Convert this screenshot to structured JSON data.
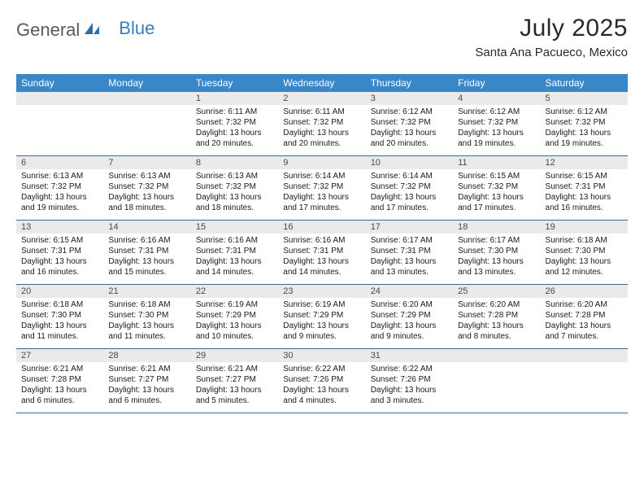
{
  "logo": {
    "text1": "General",
    "text2": "Blue"
  },
  "title": "July 2025",
  "location": "Santa Ana Pacueco, Mexico",
  "colors": {
    "header_bg": "#3a87c7",
    "header_fg": "#ffffff",
    "daynum_bg": "#e8eaec",
    "daynum_fg": "#4a4a4a",
    "body_fg": "#1a1a1a",
    "rule": "#3a6a95",
    "logo_gray": "#5a5a5a",
    "logo_blue": "#3a7db8"
  },
  "weekdays": [
    "Sunday",
    "Monday",
    "Tuesday",
    "Wednesday",
    "Thursday",
    "Friday",
    "Saturday"
  ],
  "leading_blanks": 2,
  "days": [
    {
      "n": 1,
      "sunrise": "6:11 AM",
      "sunset": "7:32 PM",
      "daylight": "13 hours and 20 minutes."
    },
    {
      "n": 2,
      "sunrise": "6:11 AM",
      "sunset": "7:32 PM",
      "daylight": "13 hours and 20 minutes."
    },
    {
      "n": 3,
      "sunrise": "6:12 AM",
      "sunset": "7:32 PM",
      "daylight": "13 hours and 20 minutes."
    },
    {
      "n": 4,
      "sunrise": "6:12 AM",
      "sunset": "7:32 PM",
      "daylight": "13 hours and 19 minutes."
    },
    {
      "n": 5,
      "sunrise": "6:12 AM",
      "sunset": "7:32 PM",
      "daylight": "13 hours and 19 minutes."
    },
    {
      "n": 6,
      "sunrise": "6:13 AM",
      "sunset": "7:32 PM",
      "daylight": "13 hours and 19 minutes."
    },
    {
      "n": 7,
      "sunrise": "6:13 AM",
      "sunset": "7:32 PM",
      "daylight": "13 hours and 18 minutes."
    },
    {
      "n": 8,
      "sunrise": "6:13 AM",
      "sunset": "7:32 PM",
      "daylight": "13 hours and 18 minutes."
    },
    {
      "n": 9,
      "sunrise": "6:14 AM",
      "sunset": "7:32 PM",
      "daylight": "13 hours and 17 minutes."
    },
    {
      "n": 10,
      "sunrise": "6:14 AM",
      "sunset": "7:32 PM",
      "daylight": "13 hours and 17 minutes."
    },
    {
      "n": 11,
      "sunrise": "6:15 AM",
      "sunset": "7:32 PM",
      "daylight": "13 hours and 17 minutes."
    },
    {
      "n": 12,
      "sunrise": "6:15 AM",
      "sunset": "7:31 PM",
      "daylight": "13 hours and 16 minutes."
    },
    {
      "n": 13,
      "sunrise": "6:15 AM",
      "sunset": "7:31 PM",
      "daylight": "13 hours and 16 minutes."
    },
    {
      "n": 14,
      "sunrise": "6:16 AM",
      "sunset": "7:31 PM",
      "daylight": "13 hours and 15 minutes."
    },
    {
      "n": 15,
      "sunrise": "6:16 AM",
      "sunset": "7:31 PM",
      "daylight": "13 hours and 14 minutes."
    },
    {
      "n": 16,
      "sunrise": "6:16 AM",
      "sunset": "7:31 PM",
      "daylight": "13 hours and 14 minutes."
    },
    {
      "n": 17,
      "sunrise": "6:17 AM",
      "sunset": "7:31 PM",
      "daylight": "13 hours and 13 minutes."
    },
    {
      "n": 18,
      "sunrise": "6:17 AM",
      "sunset": "7:30 PM",
      "daylight": "13 hours and 13 minutes."
    },
    {
      "n": 19,
      "sunrise": "6:18 AM",
      "sunset": "7:30 PM",
      "daylight": "13 hours and 12 minutes."
    },
    {
      "n": 20,
      "sunrise": "6:18 AM",
      "sunset": "7:30 PM",
      "daylight": "13 hours and 11 minutes."
    },
    {
      "n": 21,
      "sunrise": "6:18 AM",
      "sunset": "7:30 PM",
      "daylight": "13 hours and 11 minutes."
    },
    {
      "n": 22,
      "sunrise": "6:19 AM",
      "sunset": "7:29 PM",
      "daylight": "13 hours and 10 minutes."
    },
    {
      "n": 23,
      "sunrise": "6:19 AM",
      "sunset": "7:29 PM",
      "daylight": "13 hours and 9 minutes."
    },
    {
      "n": 24,
      "sunrise": "6:20 AM",
      "sunset": "7:29 PM",
      "daylight": "13 hours and 9 minutes."
    },
    {
      "n": 25,
      "sunrise": "6:20 AM",
      "sunset": "7:28 PM",
      "daylight": "13 hours and 8 minutes."
    },
    {
      "n": 26,
      "sunrise": "6:20 AM",
      "sunset": "7:28 PM",
      "daylight": "13 hours and 7 minutes."
    },
    {
      "n": 27,
      "sunrise": "6:21 AM",
      "sunset": "7:28 PM",
      "daylight": "13 hours and 6 minutes."
    },
    {
      "n": 28,
      "sunrise": "6:21 AM",
      "sunset": "7:27 PM",
      "daylight": "13 hours and 6 minutes."
    },
    {
      "n": 29,
      "sunrise": "6:21 AM",
      "sunset": "7:27 PM",
      "daylight": "13 hours and 5 minutes."
    },
    {
      "n": 30,
      "sunrise": "6:22 AM",
      "sunset": "7:26 PM",
      "daylight": "13 hours and 4 minutes."
    },
    {
      "n": 31,
      "sunrise": "6:22 AM",
      "sunset": "7:26 PM",
      "daylight": "13 hours and 3 minutes."
    }
  ],
  "labels": {
    "sunrise": "Sunrise:",
    "sunset": "Sunset:",
    "daylight": "Daylight:"
  }
}
